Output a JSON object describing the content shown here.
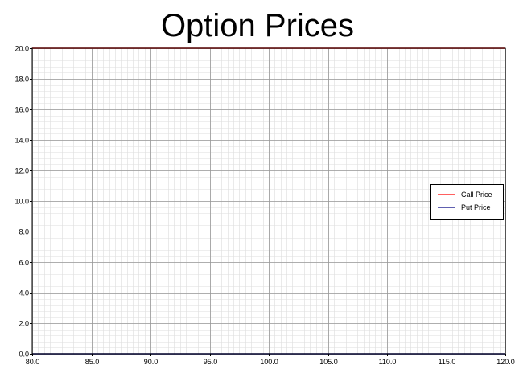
{
  "chart_data": {
    "type": "line",
    "title": "Option Prices",
    "xlabel": "",
    "ylabel": "",
    "xlim": [
      80.0,
      120.0
    ],
    "ylim": [
      0.0,
      20.0
    ],
    "x_ticks": [
      80.0,
      85.0,
      90.0,
      95.0,
      100.0,
      105.0,
      110.0,
      115.0,
      120.0
    ],
    "y_ticks": [
      0.0,
      2.0,
      4.0,
      6.0,
      8.0,
      10.0,
      12.0,
      14.0,
      16.0,
      18.0,
      20.0
    ],
    "tick_format_decimals": 1,
    "grid": true,
    "minor_grid": true,
    "legend_position": "right",
    "series": [
      {
        "name": "Call Price",
        "color": "#ff0000",
        "x": [
          80.0,
          120.0
        ],
        "y": [
          20.0,
          20.0
        ]
      },
      {
        "name": "Put Price",
        "color": "#000080",
        "x": [
          80.0,
          120.0
        ],
        "y": [
          0.0,
          0.0
        ]
      }
    ]
  }
}
